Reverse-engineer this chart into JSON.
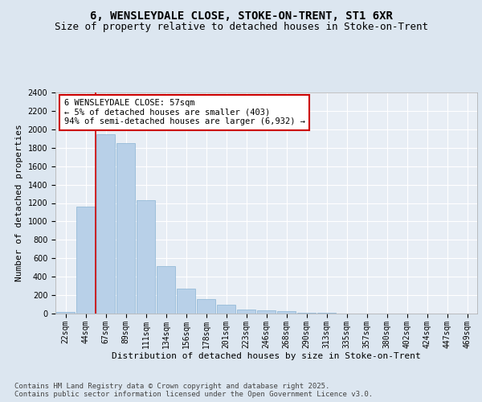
{
  "title1": "6, WENSLEYDALE CLOSE, STOKE-ON-TRENT, ST1 6XR",
  "title2": "Size of property relative to detached houses in Stoke-on-Trent",
  "xlabel": "Distribution of detached houses by size in Stoke-on-Trent",
  "ylabel": "Number of detached properties",
  "categories": [
    "22sqm",
    "44sqm",
    "67sqm",
    "89sqm",
    "111sqm",
    "134sqm",
    "156sqm",
    "178sqm",
    "201sqm",
    "223sqm",
    "246sqm",
    "268sqm",
    "290sqm",
    "313sqm",
    "335sqm",
    "357sqm",
    "380sqm",
    "402sqm",
    "424sqm",
    "447sqm",
    "469sqm"
  ],
  "values": [
    20,
    1160,
    1950,
    1850,
    1230,
    515,
    270,
    155,
    95,
    45,
    35,
    28,
    12,
    5,
    2,
    1,
    1,
    0,
    0,
    0,
    0
  ],
  "bar_color": "#b8d0e8",
  "bar_edge_color": "#8ab4d4",
  "vline_color": "#cc0000",
  "annotation_text": "6 WENSLEYDALE CLOSE: 57sqm\n← 5% of detached houses are smaller (403)\n94% of semi-detached houses are larger (6,932) →",
  "annotation_box_color": "#ffffff",
  "annotation_box_edge": "#cc0000",
  "ylim": [
    0,
    2400
  ],
  "yticks": [
    0,
    200,
    400,
    600,
    800,
    1000,
    1200,
    1400,
    1600,
    1800,
    2000,
    2200,
    2400
  ],
  "bg_color": "#dce6f0",
  "plot_bg_color": "#e8eef5",
  "footer": "Contains HM Land Registry data © Crown copyright and database right 2025.\nContains public sector information licensed under the Open Government Licence v3.0.",
  "title_fontsize": 10,
  "subtitle_fontsize": 9,
  "axis_label_fontsize": 8,
  "tick_fontsize": 7,
  "annotation_fontsize": 7.5,
  "footer_fontsize": 6.5
}
